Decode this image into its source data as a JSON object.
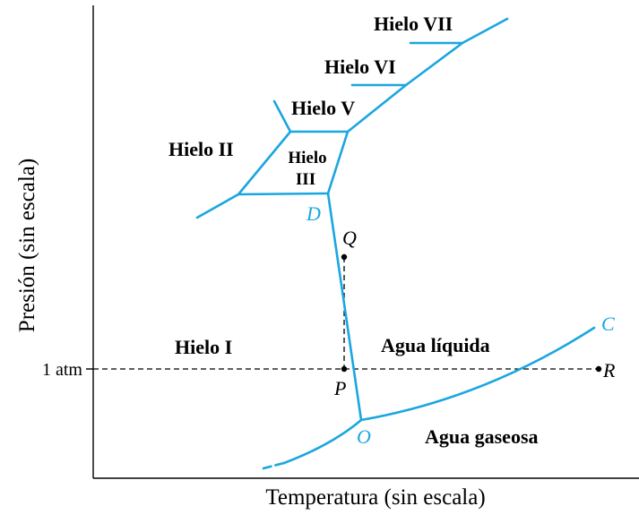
{
  "colors": {
    "curve": "#1aa6e0",
    "text": "#000000",
    "axis": "#000000"
  },
  "axes": {
    "x_title": "Temperatura (sin escala)",
    "y_title": "Presión (sin escala)",
    "y_tick": "1 atm"
  },
  "regions": {
    "hielo_vii": "Hielo VII",
    "hielo_vi": "Hielo VI",
    "hielo_v": "Hielo V",
    "hielo_ii": "Hielo II",
    "hielo_iii_line1": "Hielo",
    "hielo_iii_line2": "III",
    "hielo_i": "Hielo I",
    "agua_liquida": "Agua líquida",
    "agua_gaseosa": "Agua gaseosa"
  },
  "points": {
    "C": "C",
    "D": "D",
    "Q": "Q",
    "P": "P",
    "R": "R",
    "O": "O"
  }
}
